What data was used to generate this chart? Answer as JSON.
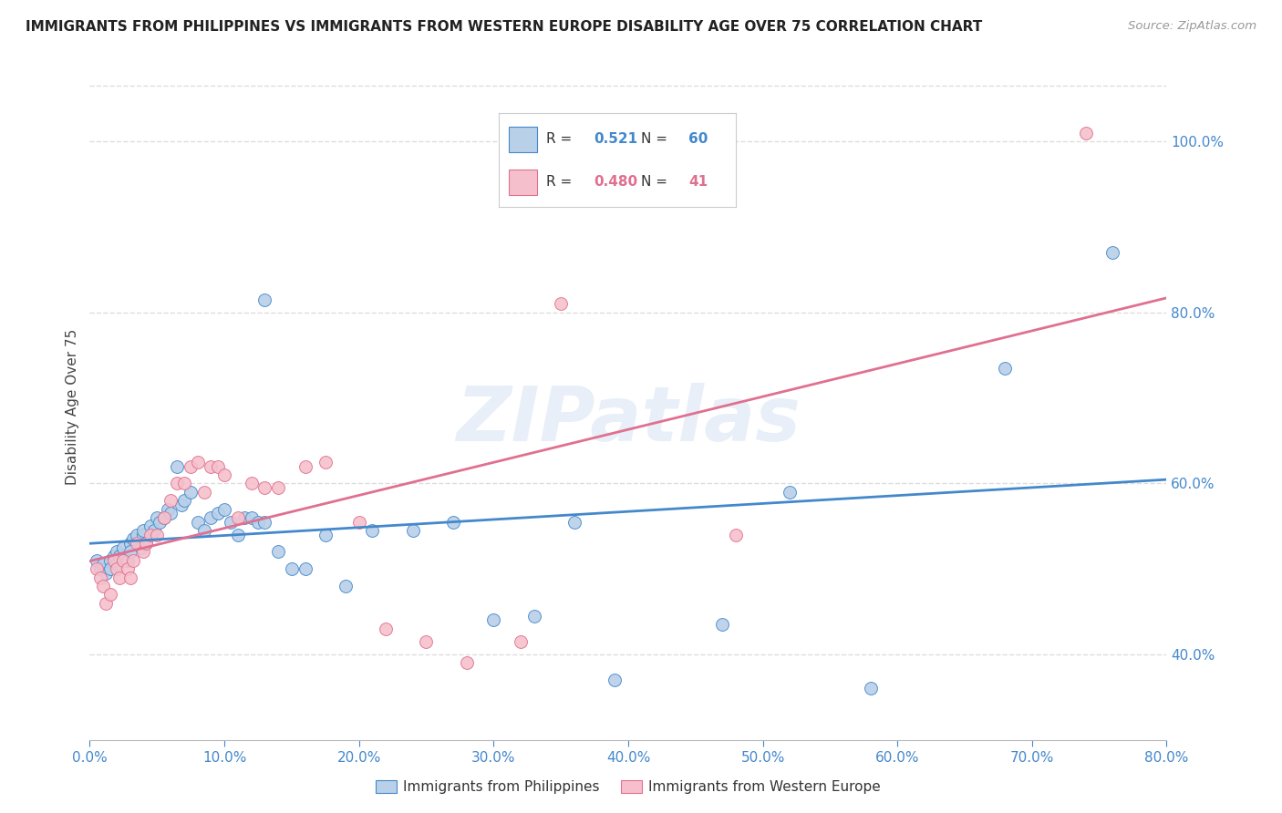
{
  "title": "IMMIGRANTS FROM PHILIPPINES VS IMMIGRANTS FROM WESTERN EUROPE DISABILITY AGE OVER 75 CORRELATION CHART",
  "source": "Source: ZipAtlas.com",
  "ylabel": "Disability Age Over 75",
  "legend_blue_r_val": "0.521",
  "legend_blue_n_val": "60",
  "legend_pink_r_val": "0.480",
  "legend_pink_n_val": "41",
  "blue_color": "#b8d0e8",
  "blue_line_color": "#4488cc",
  "pink_color": "#f5c0cc",
  "pink_line_color": "#e07090",
  "blue_scatter_x": [
    0.005,
    0.008,
    0.01,
    0.012,
    0.015,
    0.015,
    0.018,
    0.02,
    0.02,
    0.022,
    0.025,
    0.028,
    0.03,
    0.03,
    0.032,
    0.035,
    0.038,
    0.04,
    0.04,
    0.042,
    0.045,
    0.048,
    0.05,
    0.052,
    0.055,
    0.058,
    0.06,
    0.065,
    0.068,
    0.07,
    0.075,
    0.08,
    0.085,
    0.09,
    0.095,
    0.1,
    0.105,
    0.11,
    0.115,
    0.12,
    0.125,
    0.13,
    0.14,
    0.15,
    0.16,
    0.175,
    0.19,
    0.21,
    0.24,
    0.27,
    0.3,
    0.33,
    0.36,
    0.39,
    0.13,
    0.47,
    0.52,
    0.58,
    0.68,
    0.76
  ],
  "blue_scatter_y": [
    0.51,
    0.5,
    0.505,
    0.495,
    0.51,
    0.5,
    0.515,
    0.505,
    0.52,
    0.515,
    0.525,
    0.51,
    0.53,
    0.52,
    0.535,
    0.54,
    0.525,
    0.54,
    0.545,
    0.53,
    0.55,
    0.545,
    0.56,
    0.555,
    0.56,
    0.57,
    0.565,
    0.62,
    0.575,
    0.58,
    0.59,
    0.555,
    0.545,
    0.56,
    0.565,
    0.57,
    0.555,
    0.54,
    0.56,
    0.56,
    0.555,
    0.555,
    0.52,
    0.5,
    0.5,
    0.54,
    0.48,
    0.545,
    0.545,
    0.555,
    0.44,
    0.445,
    0.555,
    0.37,
    0.815,
    0.435,
    0.59,
    0.36,
    0.735,
    0.87
  ],
  "pink_scatter_x": [
    0.005,
    0.008,
    0.01,
    0.012,
    0.015,
    0.018,
    0.02,
    0.022,
    0.025,
    0.028,
    0.03,
    0.032,
    0.035,
    0.04,
    0.042,
    0.045,
    0.05,
    0.055,
    0.06,
    0.065,
    0.07,
    0.075,
    0.08,
    0.085,
    0.09,
    0.095,
    0.1,
    0.11,
    0.12,
    0.13,
    0.14,
    0.16,
    0.175,
    0.2,
    0.22,
    0.25,
    0.28,
    0.32,
    0.35,
    0.48,
    0.74
  ],
  "pink_scatter_y": [
    0.5,
    0.49,
    0.48,
    0.46,
    0.47,
    0.51,
    0.5,
    0.49,
    0.51,
    0.5,
    0.49,
    0.51,
    0.53,
    0.52,
    0.53,
    0.54,
    0.54,
    0.56,
    0.58,
    0.6,
    0.6,
    0.62,
    0.625,
    0.59,
    0.62,
    0.62,
    0.61,
    0.56,
    0.6,
    0.595,
    0.595,
    0.62,
    0.625,
    0.555,
    0.43,
    0.415,
    0.39,
    0.415,
    0.81,
    0.54,
    1.01
  ],
  "xlim": [
    0.0,
    0.8
  ],
  "ylim": [
    0.3,
    1.08
  ],
  "tick_color": "#4488cc",
  "grid_color": "#dddddd",
  "watermark": "ZIPatlas",
  "bg_color": "#ffffff",
  "legend_label_blue": "Immigrants from Philippines",
  "legend_label_pink": "Immigrants from Western Europe"
}
